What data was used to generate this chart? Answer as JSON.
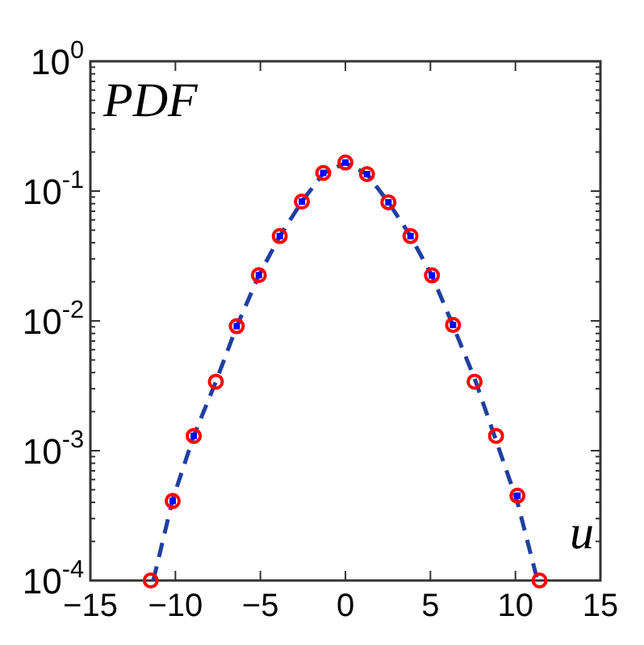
{
  "chart_data": {
    "type": "scatter",
    "log": "y",
    "grid": false,
    "legend": false,
    "xlim": [
      -15,
      15
    ],
    "xticks": [
      -15,
      -10,
      -5,
      0,
      5,
      10,
      15
    ],
    "ylim": [
      0.0001,
      1
    ],
    "yticks": [
      {
        "value": 0.0001,
        "label": "10$^{-4}$"
      },
      {
        "value": 0.001,
        "label": "10$^{-3}$"
      },
      {
        "value": 0.01,
        "label": "10$^{-2}$"
      },
      {
        "value": 0.1,
        "label": "10$^{-1}$"
      },
      {
        "value": 1,
        "label": "10$^{0}$"
      }
    ],
    "annotations": [
      "PDF",
      "u"
    ],
    "x": [
      -11.45,
      -10.16,
      -8.92,
      -7.62,
      -6.39,
      -5.09,
      -3.86,
      -2.56,
      -1.3,
      0,
      1.27,
      2.53,
      3.83,
      5.09,
      6.33,
      7.6,
      8.86,
      10.12,
      11.42
    ],
    "series": [
      {
        "type": "line",
        "color": "#1f3fa0",
        "marker": "none",
        "line_style": "dashed",
        "x": [
          -11.3,
          -10.16,
          -8.92,
          -7.62,
          -6.39,
          -5.09,
          -3.86,
          -2.56,
          -1.3,
          0,
          1.27,
          2.53,
          3.83,
          5.09,
          6.33,
          7.6,
          8.86,
          10.12,
          11.3
        ],
        "values": [
          0.0001,
          0.00042,
          0.0013,
          0.0034,
          0.0091,
          0.0224,
          0.045,
          0.083,
          0.137,
          0.165,
          0.135,
          0.082,
          0.045,
          0.0223,
          0.0092,
          0.0036,
          0.0012,
          0.0004,
          0.0001
        ]
      },
      {
        "color": "#ff0000",
        "marker": "circle",
        "values": [
          0.0001,
          0.00041,
          0.0013,
          0.0034,
          0.0091,
          0.0225,
          0.045,
          0.083,
          0.138,
          0.166,
          0.135,
          0.082,
          0.045,
          0.0224,
          0.0093,
          0.0034,
          0.0013,
          0.00045,
          0.0001
        ]
      },
      {
        "type": "scatter",
        "color": "#0000ff",
        "marker": "square",
        "values": [
          null,
          0.00041,
          0.0013,
          null,
          0.0091,
          0.0225,
          0.045,
          0.083,
          0.138,
          0.166,
          0.135,
          0.082,
          0.045,
          0.0224,
          0.0093,
          null,
          null,
          0.00045,
          null
        ]
      }
    ]
  }
}
